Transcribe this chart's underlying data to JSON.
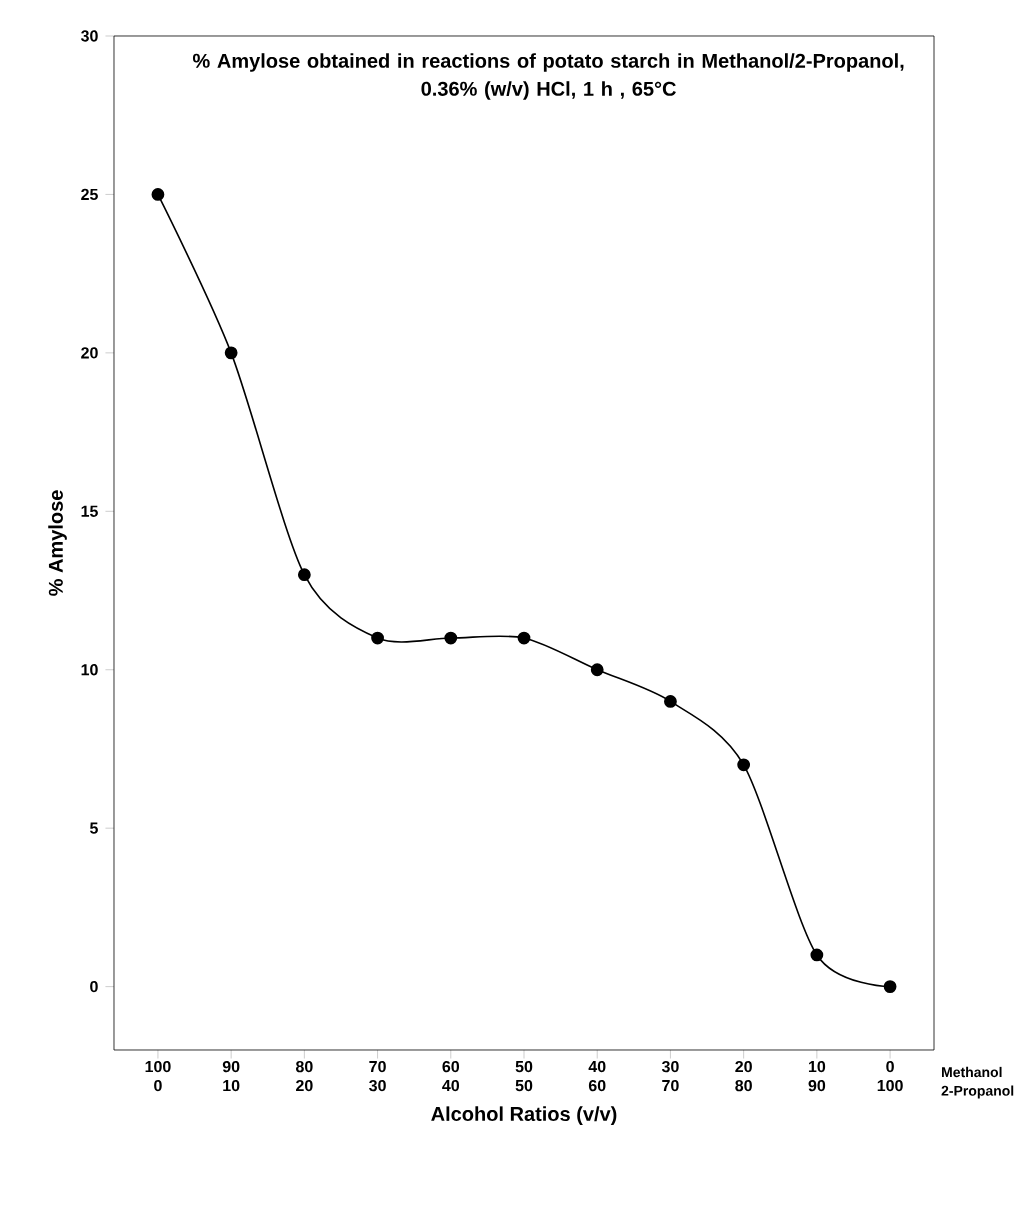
{
  "chart_data": {
    "type": "line",
    "title": "% Amylose obtained in reactions of potato starch in Methanol/2-Propanol,",
    "subtitle": "0.36% (w/v) HCl, 1 h , 65°C",
    "xlabel": "Alcohol Ratios (v/v)",
    "ylabel": "% Amylose",
    "categories": [
      "100 0",
      "90 10",
      "80 20",
      "70 30",
      "60 40",
      "50 50",
      "40 60",
      "30 70",
      "20 80",
      "10 90",
      "0 100"
    ],
    "values": [
      25,
      20,
      13,
      11,
      11,
      11,
      10,
      9,
      7,
      1,
      0
    ],
    "color": "#000000",
    "marker": "circle",
    "line_style": "solid",
    "ylim": [
      -2,
      30
    ],
    "yticks": [
      0,
      5,
      10,
      15,
      20,
      25,
      30
    ],
    "annotations": [
      "Methanol",
      "2-Propanol"
    ],
    "grid": false
  }
}
